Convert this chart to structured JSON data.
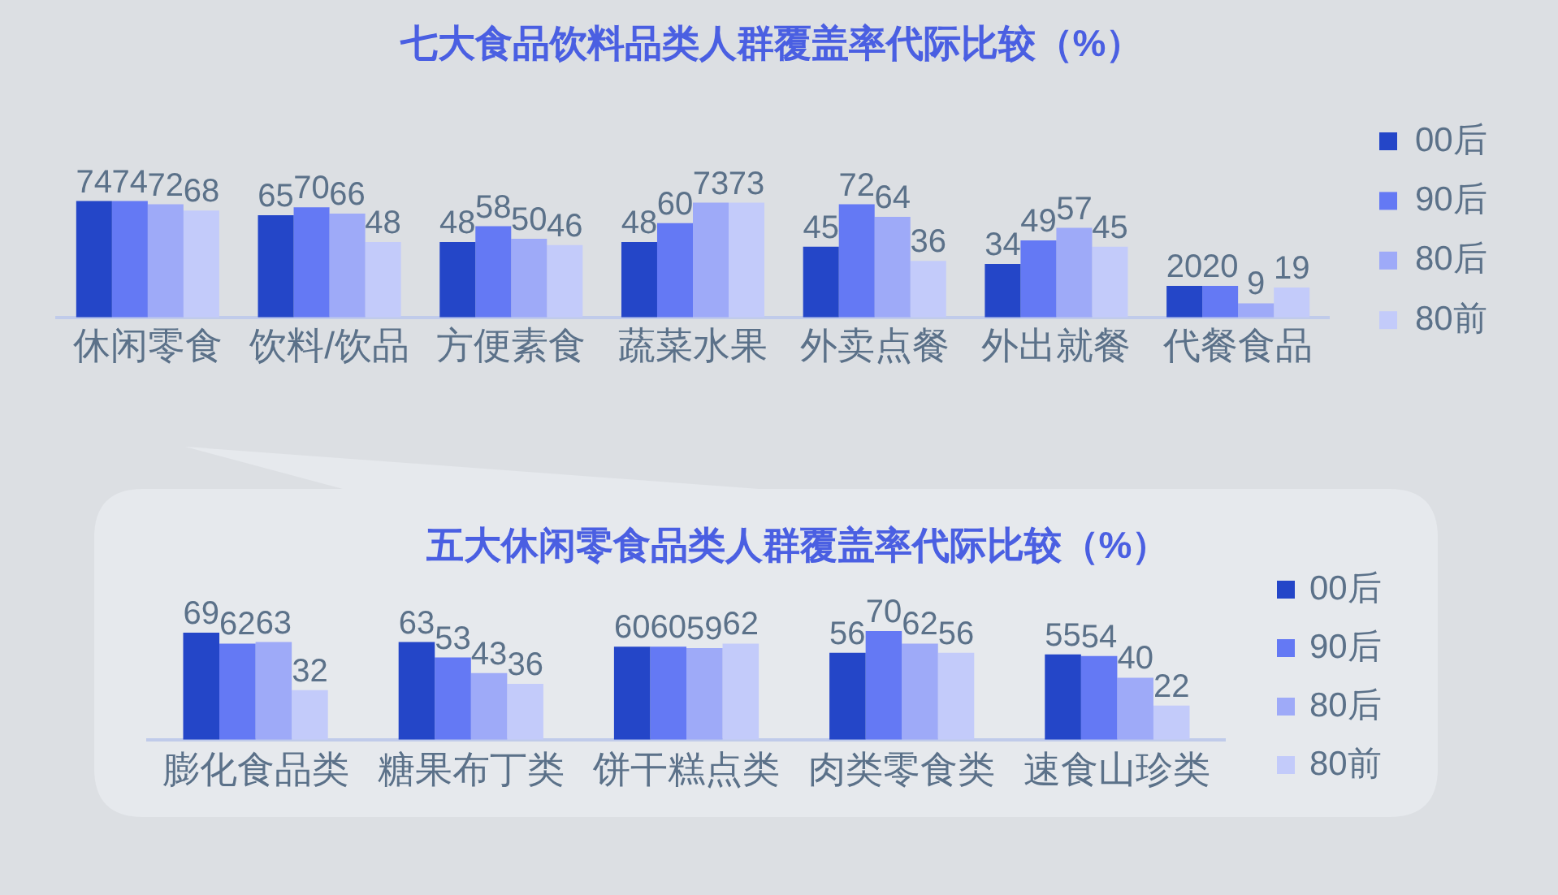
{
  "chart_data": [
    {
      "type": "bar",
      "title": "七大食品饮料品类人群覆盖率代际比较（%）",
      "categories": [
        "休闲零食",
        "饮料/饮品",
        "方便素食",
        "蔬菜水果",
        "外卖点餐",
        "外出就餐",
        "代餐食品"
      ],
      "series": [
        {
          "name": "00后",
          "color": "#2446c8",
          "values": [
            74,
            65,
            48,
            48,
            45,
            34,
            20
          ]
        },
        {
          "name": "90后",
          "color": "#6479f4",
          "values": [
            74,
            70,
            58,
            60,
            72,
            49,
            20
          ]
        },
        {
          "name": "80后",
          "color": "#9eaaf8",
          "values": [
            72,
            66,
            50,
            73,
            64,
            57,
            9
          ]
        },
        {
          "name": "80前",
          "color": "#c3cbfa",
          "values": [
            68,
            48,
            46,
            73,
            36,
            45,
            19
          ]
        }
      ],
      "data_labels": true,
      "legend": "right"
    },
    {
      "type": "bar",
      "title": "五大休闲零食品类人群覆盖率代际比较（%）",
      "categories": [
        "膨化食品类",
        "糖果布丁类",
        "饼干糕点类",
        "肉类零食类",
        "速食山珍类"
      ],
      "series": [
        {
          "name": "00后",
          "color": "#2446c8",
          "values": [
            69,
            63,
            60,
            56,
            55
          ]
        },
        {
          "name": "90后",
          "color": "#6479f4",
          "values": [
            62,
            53,
            60,
            70,
            54
          ]
        },
        {
          "name": "80后",
          "color": "#9eaaf8",
          "values": [
            63,
            43,
            59,
            62,
            40
          ]
        },
        {
          "name": "80前",
          "color": "#c3cbfa",
          "values": [
            32,
            36,
            62,
            56,
            22
          ]
        }
      ],
      "data_labels": true,
      "legend": "right"
    }
  ]
}
